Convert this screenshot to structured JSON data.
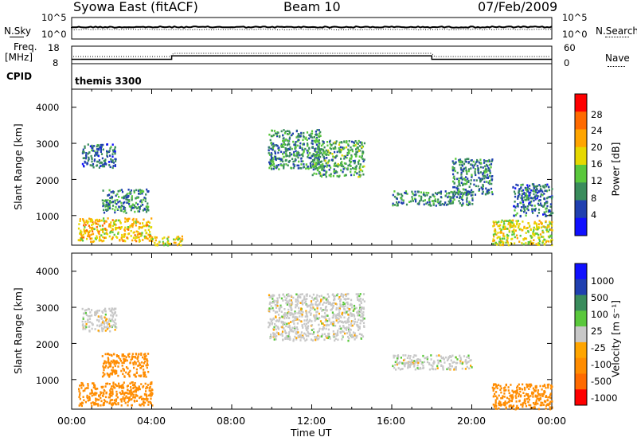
{
  "header": {
    "station": "Syowa East (fitACF)",
    "beam": "Beam 10",
    "date": "07/Feb/2009"
  },
  "top_panels": {
    "nsky_label": "N.Sky",
    "nsearch_label": "N.Search",
    "noise_ticks": [
      "10^5",
      "10^0"
    ],
    "freq_label_1": "Freq.",
    "freq_label_2": "[MHz]",
    "freq_ticks": [
      "18",
      "8"
    ],
    "nave_ticks": [
      "60",
      "0"
    ],
    "nave_label": "Nave",
    "cpid_label": "CPID",
    "cpid_value": "themis 3300"
  },
  "axes": {
    "x_ticks": [
      "00:00",
      "04:00",
      "08:00",
      "12:00",
      "16:00",
      "20:00",
      "00:00"
    ],
    "x_label": "Time UT",
    "y_ticks": [
      "4000",
      "3000",
      "2000",
      "1000"
    ],
    "y_label": "Slant Range [km]"
  },
  "power_scale": {
    "label": "Power [dB]",
    "ticks": [
      "28",
      "24",
      "20",
      "16",
      "12",
      "8",
      "4"
    ],
    "colors": [
      "#ff0000",
      "#ff6a00",
      "#ffa500",
      "#e6d800",
      "#5ac83c",
      "#3a8c5c",
      "#2040b0",
      "#1010ff"
    ]
  },
  "velocity_scale": {
    "label": "Velocity [m s⁻¹]",
    "ticks": [
      "1000",
      "500",
      "100",
      "25",
      "-25",
      "-100",
      "-500",
      "-1000"
    ],
    "colors": [
      "#1010ff",
      "#2040b0",
      "#3a8c5c",
      "#5ac83c",
      "#c8c8c8",
      "#ffa500",
      "#ff8c00",
      "#ff6a00",
      "#ff0000"
    ]
  },
  "chart_data": [
    {
      "type": "line",
      "title": "N.Sky / N.Search",
      "x": [
        0,
        24
      ],
      "ylim": [
        "10^0",
        "10^5"
      ],
      "note": "noise levels near top of range"
    },
    {
      "type": "line",
      "title": "Freq. / Nave",
      "series": [
        {
          "name": "Freq.",
          "x": [
            0,
            5,
            5,
            18,
            18,
            24
          ],
          "values": [
            10.5,
            10.5,
            12.5,
            12.5,
            10.5,
            10.5
          ]
        }
      ],
      "ylim": [
        8,
        18
      ]
    },
    {
      "type": "heatmap",
      "title": "Power [dB]",
      "xlabel": "Time UT",
      "ylabel": "Slant Range [km]",
      "xlim": [
        0,
        24
      ],
      "ylim": [
        180,
        4500
      ],
      "regions": [
        {
          "t0": 0.5,
          "t1": 2.2,
          "r0": 2350,
          "r1": 3000,
          "level": 8
        },
        {
          "t0": 0.3,
          "t1": 4.0,
          "r0": 300,
          "r1": 950,
          "level": 20
        },
        {
          "t0": 1.5,
          "t1": 3.8,
          "r0": 1100,
          "r1": 1750,
          "level": 10
        },
        {
          "t0": 4.0,
          "t1": 5.5,
          "r0": 200,
          "r1": 450,
          "level": 18
        },
        {
          "t0": 9.8,
          "t1": 12.4,
          "r0": 2300,
          "r1": 3400,
          "level": 10
        },
        {
          "t0": 12.0,
          "t1": 14.6,
          "r0": 2100,
          "r1": 3100,
          "level": 12
        },
        {
          "t0": 16.0,
          "t1": 20.0,
          "r0": 1300,
          "r1": 1700,
          "level": 10
        },
        {
          "t0": 19.0,
          "t1": 21.0,
          "r0": 1600,
          "r1": 2600,
          "level": 9
        },
        {
          "t0": 21.0,
          "t1": 24.0,
          "r0": 200,
          "r1": 900,
          "level": 18
        },
        {
          "t0": 22.0,
          "t1": 24.0,
          "r0": 1000,
          "r1": 1900,
          "level": 8
        }
      ]
    },
    {
      "type": "heatmap",
      "title": "Velocity [m s-1]",
      "xlabel": "Time UT",
      "ylabel": "Slant Range [km]",
      "xlim": [
        0,
        24
      ],
      "ylim": [
        180,
        4500
      ],
      "regions": [
        {
          "t0": 0.3,
          "t1": 4.0,
          "r0": 300,
          "r1": 950,
          "level": -300
        },
        {
          "t0": 1.5,
          "t1": 3.8,
          "r0": 1100,
          "r1": 1750,
          "level": -150
        },
        {
          "t0": 0.5,
          "t1": 2.2,
          "r0": 2350,
          "r1": 3000,
          "level": 0
        },
        {
          "t0": 9.8,
          "t1": 14.6,
          "r0": 2100,
          "r1": 3400,
          "level": 0
        },
        {
          "t0": 16.0,
          "t1": 20.0,
          "r0": 1300,
          "r1": 1700,
          "level": 0
        },
        {
          "t0": 21.0,
          "t1": 24.0,
          "r0": 200,
          "r1": 900,
          "level": -200
        }
      ]
    }
  ]
}
